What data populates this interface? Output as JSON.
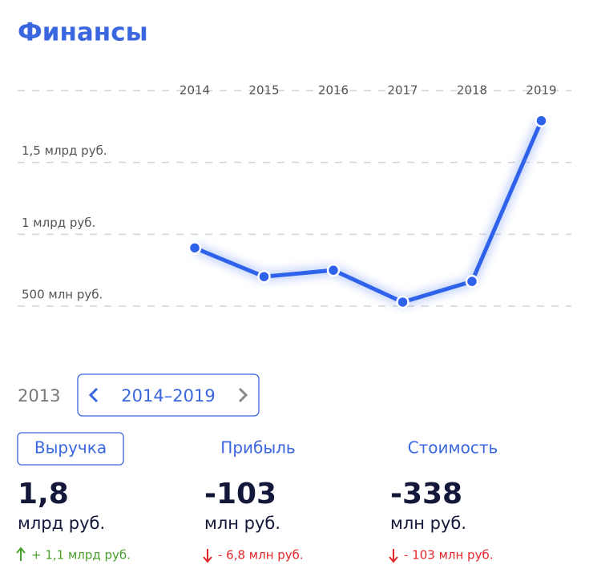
{
  "header": {
    "title": "Финансы"
  },
  "chart_data": {
    "type": "line",
    "categories": [
      "2014",
      "2015",
      "2016",
      "2017",
      "2018",
      "2019"
    ],
    "values": [
      905000000,
      705000000,
      750000000,
      528000000,
      672000000,
      1790000000
    ],
    "color": "#2f62ea",
    "ylim": [
      500000000,
      2000000000
    ],
    "yticks": [
      {
        "value": 500000000,
        "label": "500 млн руб."
      },
      {
        "value": 1000000000,
        "label": "1 млрд руб."
      },
      {
        "value": 1500000000,
        "label": "1,5 млрд руб."
      }
    ],
    "grid": true
  },
  "period": {
    "previous": "2013",
    "current": "2014–2019"
  },
  "metrics": [
    {
      "name": "Выручка",
      "value": "1,8",
      "unit": "млрд руб.",
      "change": "+ 1,1 млрд руб.",
      "direction": "up"
    },
    {
      "name": "Прибыль",
      "value": "-103",
      "unit": "млн руб.",
      "change": "- 6,8 млн руб.",
      "direction": "down"
    },
    {
      "name": "Стоимость",
      "value": "-338",
      "unit": "млн руб.",
      "change": "- 103 млн руб.",
      "direction": "down"
    }
  ]
}
